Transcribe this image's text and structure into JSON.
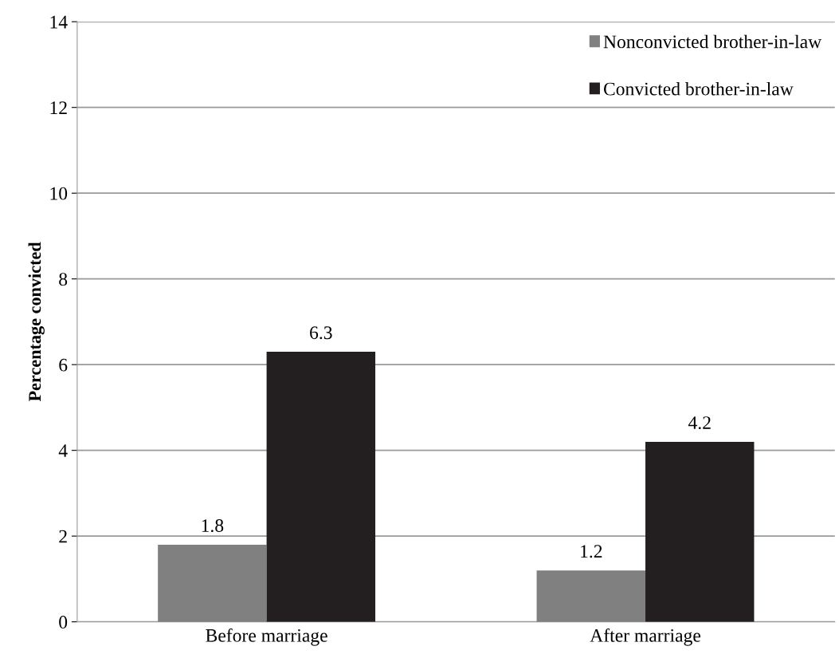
{
  "chart_data": {
    "type": "bar",
    "ylabel": "Percentage convicted",
    "categories": [
      "Before marriage",
      "After marriage"
    ],
    "series": [
      {
        "name": "Nonconvicted brother-in-law",
        "color": "#808080",
        "values": [
          1.8,
          1.2
        ]
      },
      {
        "name": "Convicted brother-in-law",
        "color": "#231f20",
        "values": [
          6.3,
          4.2
        ]
      }
    ],
    "ylim": [
      0,
      14
    ],
    "yticks": [
      0,
      2,
      4,
      6,
      8,
      10,
      12,
      14
    ],
    "grid": "y",
    "legend": "top right",
    "data_labels": true
  }
}
